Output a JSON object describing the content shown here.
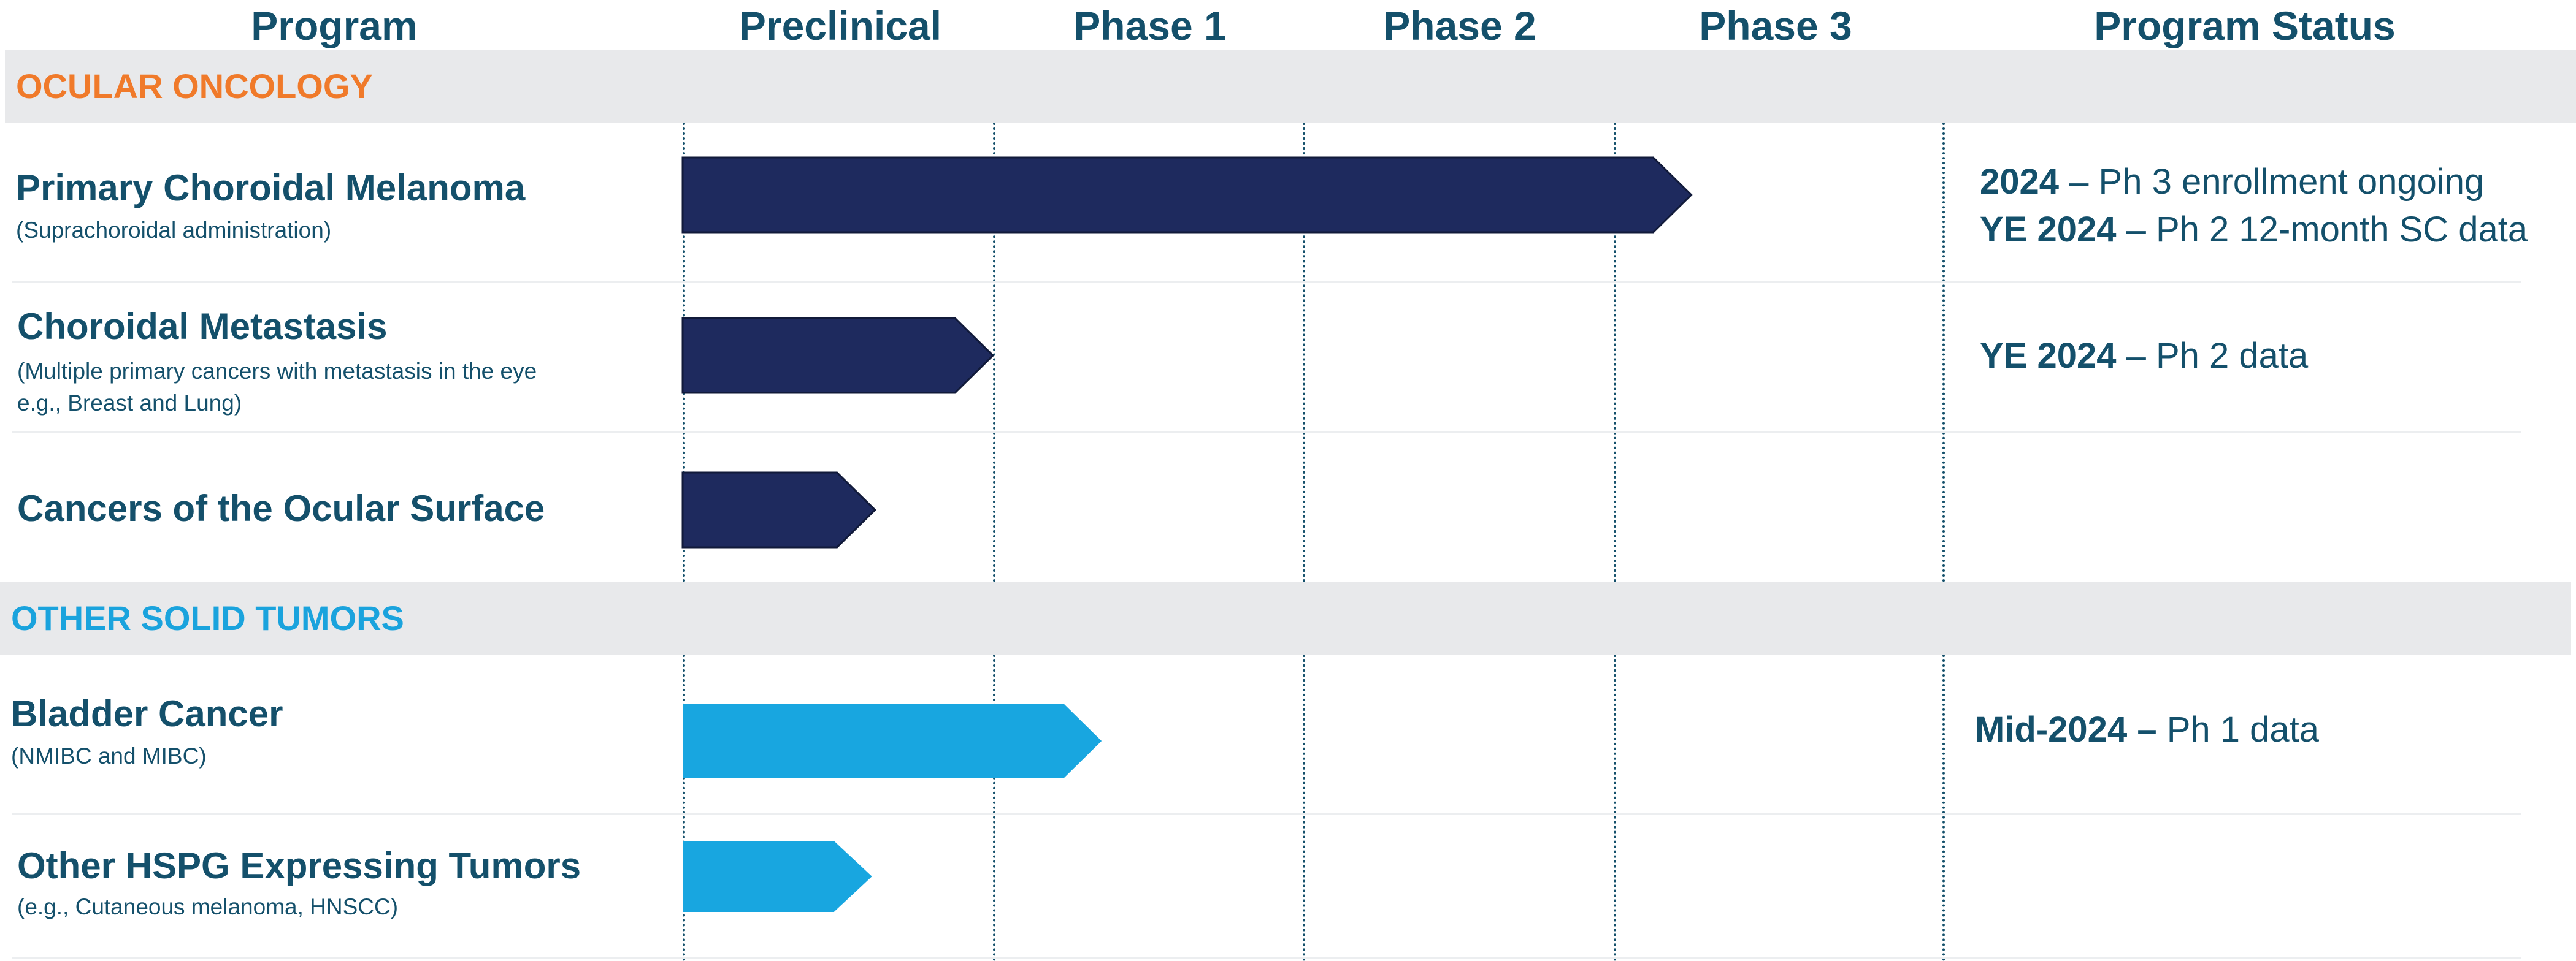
{
  "header": {
    "program": "Program",
    "preclinical": "Preclinical",
    "phase1": "Phase 1",
    "phase2": "Phase 2",
    "phase3": "Phase 3",
    "status": "Program Status"
  },
  "colors": {
    "heading": "#14506b",
    "ocular_section": "#f07a2a",
    "solid_section": "#1aa3dd",
    "bar_dark": "#1e2a5e",
    "bar_light": "#18a6e0",
    "band": "#e8e9eb"
  },
  "sections": {
    "ocular": {
      "label": "OCULAR ONCOLOGY",
      "programs": [
        {
          "name": "Primary Choroidal Melanoma",
          "sub": "(Suprachoroidal administration)",
          "progress": 3.25,
          "status": [
            {
              "bold": "2024",
              "rest": " – Ph 3 enrollment ongoing"
            },
            {
              "bold": "YE 2024",
              "rest": " – Ph 2 12-month SC data"
            }
          ]
        },
        {
          "name": "Choroidal Metastasis",
          "sub1": "(Multiple primary cancers with metastasis in the eye",
          "sub2": "e.g., Breast and Lung)",
          "progress": 1.0,
          "status": [
            {
              "bold": "YE 2024",
              "rest": " – Ph 2 data"
            }
          ]
        },
        {
          "name": "Cancers of the Ocular Surface",
          "progress": 0.62
        }
      ]
    },
    "solid": {
      "label": "OTHER SOLID TUMORS",
      "programs": [
        {
          "name": "Bladder Cancer",
          "sub": "(NMIBC and MIBC)",
          "progress": 1.35,
          "status": [
            {
              "bold": "Mid-2024 –",
              "rest": " Ph 1 data"
            }
          ]
        },
        {
          "name": "Other HSPG Expressing Tumors",
          "sub": "(e.g., Cutaneous melanoma, HNSCC)",
          "progress": 0.61
        }
      ]
    }
  }
}
